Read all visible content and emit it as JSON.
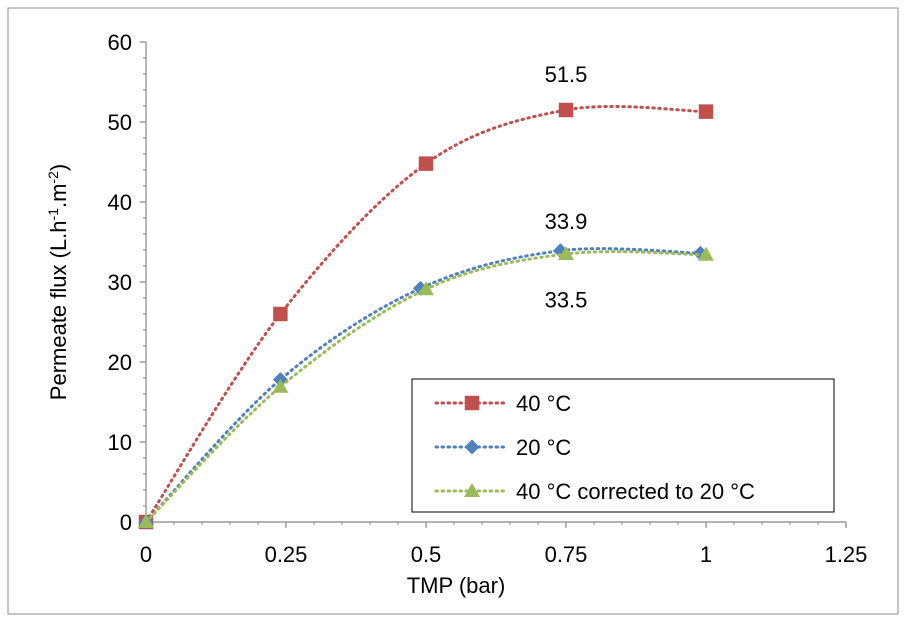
{
  "chart_data": {
    "type": "scatter",
    "xlabel": "TMP (bar)",
    "ylabel": {
      "parts": [
        {
          "text": "Permeate flux (L.h",
          "sup": false
        },
        {
          "text": "-1",
          "sup": true
        },
        {
          "text": ".m",
          "sup": false
        },
        {
          "text": "-2",
          "sup": true
        },
        {
          "text": ")",
          "sup": false
        }
      ]
    },
    "xlim": [
      0,
      1.25
    ],
    "ylim": [
      0,
      60
    ],
    "x_ticks": [
      {
        "value": 0,
        "label": "0"
      },
      {
        "value": 0.25,
        "label": "0.25"
      },
      {
        "value": 0.5,
        "label": "0.5"
      },
      {
        "value": 0.75,
        "label": "0.75"
      },
      {
        "value": 1,
        "label": "1"
      },
      {
        "value": 1.25,
        "label": "1.25"
      }
    ],
    "y_ticks": [
      {
        "value": 0,
        "label": "0"
      },
      {
        "value": 10,
        "label": "10"
      },
      {
        "value": 20,
        "label": "20"
      },
      {
        "value": 30,
        "label": "30"
      },
      {
        "value": 40,
        "label": "40"
      },
      {
        "value": 50,
        "label": "50"
      },
      {
        "value": 60,
        "label": "60"
      }
    ],
    "grid": false,
    "legend_position": "bottom-right",
    "series": [
      {
        "name": "40 °C",
        "marker": "square",
        "color": "#C0504D",
        "points": [
          {
            "x": 0,
            "y": 0
          },
          {
            "x": 0.24,
            "y": 26.0
          },
          {
            "x": 0.5,
            "y": 44.8
          },
          {
            "x": 0.75,
            "y": 51.5
          },
          {
            "x": 1.0,
            "y": 51.3
          }
        ]
      },
      {
        "name": "20 °C",
        "marker": "diamond",
        "color": "#4F81BD",
        "points": [
          {
            "x": 0,
            "y": 0
          },
          {
            "x": 0.24,
            "y": 17.8
          },
          {
            "x": 0.49,
            "y": 29.2
          },
          {
            "x": 0.74,
            "y": 33.9
          },
          {
            "x": 0.99,
            "y": 33.6
          }
        ]
      },
      {
        "name": "40 °C corrected to 20 °C",
        "marker": "triangle",
        "color": "#9BBB59",
        "points": [
          {
            "x": 0,
            "y": 0
          },
          {
            "x": 0.24,
            "y": 16.9
          },
          {
            "x": 0.5,
            "y": 29.1
          },
          {
            "x": 0.75,
            "y": 33.5
          },
          {
            "x": 1.0,
            "y": 33.4
          }
        ]
      }
    ],
    "annotations": [
      {
        "text": "51.5",
        "x": 0.75,
        "y": 56.0
      },
      {
        "text": "33.9",
        "x": 0.75,
        "y": 37.6
      },
      {
        "text": "33.5",
        "x": 0.75,
        "y": 27.8
      }
    ]
  }
}
